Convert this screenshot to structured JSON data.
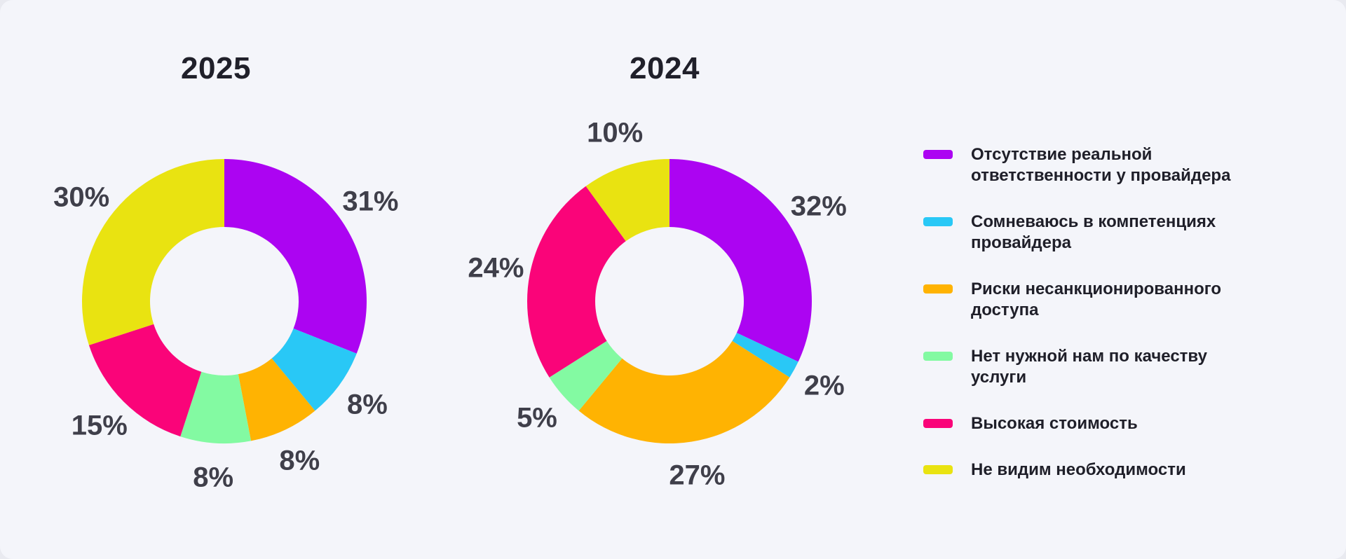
{
  "page_background": "#F4F5FA",
  "colors": {
    "purple": "#AC04F2",
    "cyan": "#29C8F6",
    "orange": "#FFB302",
    "green": "#83FAA2",
    "pink": "#FA0479",
    "yellow": "#E9E311",
    "title_text": "#20202A",
    "value_label_text": "#3F3F4A",
    "legend_text": "#1F1F29"
  },
  "chart_data": [
    {
      "type": "pie",
      "subtype": "donut",
      "title": "2025",
      "unit": "%",
      "start_angle_deg": 0,
      "direction": "clockwise",
      "categories": [
        "Отсутствие реальной ответственности у провайдера",
        "Сомневаюсь в компетенциях провайдера",
        "Риски несанкционированного доступа",
        "Нет нужной нам по качеству услуги",
        "Высокая стоимость",
        "Не видим необходимости"
      ],
      "values": [
        31,
        8,
        8,
        8,
        15,
        30
      ],
      "labels": [
        "31%",
        "8%",
        "8%",
        "8%",
        "15%",
        "30%"
      ],
      "colors": [
        "#AC04F2",
        "#29C8F6",
        "#FFB302",
        "#83FAA2",
        "#FA0479",
        "#E9E311"
      ],
      "legend_position": "right"
    },
    {
      "type": "pie",
      "subtype": "donut",
      "title": "2024",
      "unit": "%",
      "start_angle_deg": 0,
      "direction": "clockwise",
      "categories": [
        "Отсутствие реальной ответственности у провайдера",
        "Сомневаюсь в компетенциях провайдера",
        "Риски несанкционированного доступа",
        "Нет нужной нам по качеству услуги",
        "Высокая стоимость",
        "Не видим необходимости"
      ],
      "values": [
        32,
        2,
        27,
        5,
        24,
        10
      ],
      "labels": [
        "32%",
        "2%",
        "27%",
        "5%",
        "24%",
        "10%"
      ],
      "colors": [
        "#AC04F2",
        "#29C8F6",
        "#FFB302",
        "#83FAA2",
        "#FA0479",
        "#E9E311"
      ],
      "legend_position": "right"
    }
  ],
  "legend": {
    "items": [
      {
        "label": "Отсутствие реальной ответственности у провайдера",
        "color": "#AC04F2"
      },
      {
        "label": "Сомневаюсь в компетенциях провайдера",
        "color": "#29C8F6"
      },
      {
        "label": "Риски несанкционированного доступа",
        "color": "#FFB302"
      },
      {
        "label": "Нет нужной нам по качеству услуги",
        "color": "#83FAA2"
      },
      {
        "label": "Высокая стоимость",
        "color": "#FA0479"
      },
      {
        "label": "Не видим необходимости",
        "color": "#E9E311"
      }
    ]
  }
}
